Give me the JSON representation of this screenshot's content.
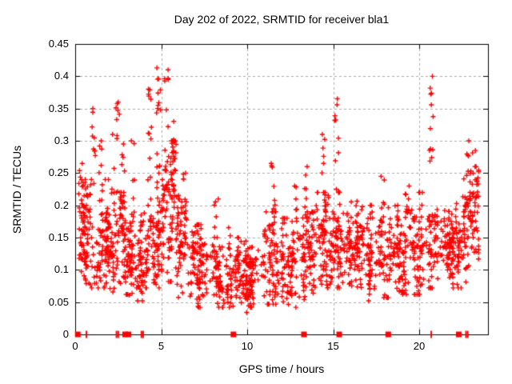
{
  "chart_data": {
    "type": "scatter",
    "title": "Day 202 of 2022, SRMTID for receiver bla1",
    "xlabel": "GPS time / hours",
    "ylabel": "SRMTID / TECUs",
    "xlim": [
      0,
      24
    ],
    "ylim": [
      0,
      0.45
    ],
    "xticks": [
      0,
      5,
      10,
      15,
      20
    ],
    "yticks": [
      0,
      0.05,
      0.1,
      0.15,
      0.2,
      0.25,
      0.3,
      0.35,
      0.4,
      0.45
    ],
    "grid": true,
    "grid_style": "dashed",
    "legend_position": "none",
    "marker": "plus",
    "marker_color": "#ff0000",
    "axis_color": "#000000",
    "grid_color": "#a9a9a9",
    "background": "#ffffff",
    "seed": 20222022,
    "density_bins": [
      [
        0,
        1,
        95,
        0.085,
        0.24
      ],
      [
        1,
        2,
        95,
        0.08,
        0.24
      ],
      [
        2,
        3,
        95,
        0.07,
        0.22
      ],
      [
        3,
        4,
        95,
        0.06,
        0.21
      ],
      [
        4,
        5,
        95,
        0.08,
        0.26
      ],
      [
        5,
        6,
        100,
        0.09,
        0.3
      ],
      [
        6,
        7,
        85,
        0.065,
        0.21
      ],
      [
        7,
        8,
        80,
        0.05,
        0.17
      ],
      [
        8,
        9,
        80,
        0.05,
        0.17
      ],
      [
        9,
        10,
        75,
        0.042,
        0.15
      ],
      [
        10,
        11,
        80,
        0.05,
        0.16
      ],
      [
        11,
        12,
        80,
        0.055,
        0.19
      ],
      [
        12,
        13,
        85,
        0.05,
        0.18
      ],
      [
        13,
        14,
        85,
        0.06,
        0.19
      ],
      [
        14,
        15,
        85,
        0.08,
        0.22
      ],
      [
        15,
        16,
        85,
        0.08,
        0.22
      ],
      [
        16,
        17,
        85,
        0.075,
        0.22
      ],
      [
        17,
        18,
        80,
        0.06,
        0.2
      ],
      [
        18,
        19,
        80,
        0.065,
        0.2
      ],
      [
        19,
        20,
        80,
        0.07,
        0.21
      ],
      [
        20,
        21,
        80,
        0.08,
        0.22
      ],
      [
        21,
        22,
        80,
        0.08,
        0.22
      ],
      [
        22,
        23,
        85,
        0.08,
        0.25
      ],
      [
        23,
        23.45,
        45,
        0.1,
        0.26
      ]
    ],
    "spikes": [
      [
        0.3,
        0.18,
        0.265,
        8
      ],
      [
        1.05,
        0.2,
        0.35,
        10
      ],
      [
        1.5,
        0.18,
        0.3,
        6
      ],
      [
        2.2,
        0.18,
        0.31,
        6
      ],
      [
        2.45,
        0.2,
        0.36,
        9
      ],
      [
        2.75,
        0.18,
        0.295,
        6
      ],
      [
        3.35,
        0.17,
        0.3,
        6
      ],
      [
        4.35,
        0.22,
        0.38,
        12
      ],
      [
        4.85,
        0.22,
        0.413,
        14
      ],
      [
        5.3,
        0.22,
        0.41,
        14
      ],
      [
        5.65,
        0.2,
        0.33,
        8
      ],
      [
        6.3,
        0.16,
        0.25,
        6
      ],
      [
        8.2,
        0.14,
        0.21,
        5
      ],
      [
        11.5,
        0.16,
        0.265,
        9
      ],
      [
        12.8,
        0.15,
        0.23,
        6
      ],
      [
        13.4,
        0.17,
        0.26,
        6
      ],
      [
        14.4,
        0.19,
        0.31,
        8
      ],
      [
        15.2,
        0.2,
        0.365,
        10
      ],
      [
        17.9,
        0.17,
        0.245,
        5
      ],
      [
        19.3,
        0.16,
        0.23,
        5
      ],
      [
        20.7,
        0.2,
        0.4,
        12
      ],
      [
        22.8,
        0.17,
        0.3,
        9
      ],
      [
        23.2,
        0.15,
        0.285,
        7
      ]
    ],
    "baseline_markers": [
      [
        0.15,
        "square"
      ],
      [
        0.65,
        "tick"
      ],
      [
        2.4,
        "tick"
      ],
      [
        2.5,
        "tick"
      ],
      [
        2.9,
        "square"
      ],
      [
        3.1,
        "square"
      ],
      [
        3.85,
        "tick"
      ],
      [
        3.95,
        "tick"
      ],
      [
        9.2,
        "square"
      ],
      [
        13.3,
        "square"
      ],
      [
        15.35,
        "square"
      ],
      [
        18.2,
        "square"
      ],
      [
        20.7,
        "tick"
      ],
      [
        22.3,
        "square"
      ],
      [
        22.72,
        "tick"
      ],
      [
        22.82,
        "tick"
      ]
    ]
  }
}
